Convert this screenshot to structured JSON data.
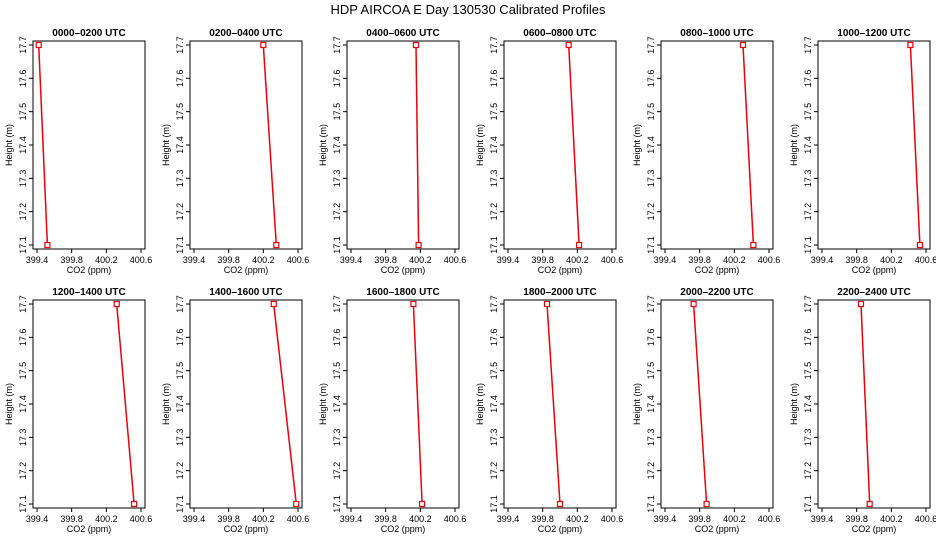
{
  "figure": {
    "title": "HDP AIRCOA E  Day 130530  Calibrated Profiles",
    "colors": {
      "series": "#e8000b",
      "axis": "#000000",
      "background": "#ffffff"
    }
  },
  "chart_data": [
    {
      "type": "line",
      "title": "0000–0200 UTC",
      "xlabel": "CO2 (ppm)",
      "ylabel": "Height (m)",
      "x": [
        399.42,
        399.52
      ],
      "y": [
        17.7,
        17.1
      ],
      "xlim": [
        399.4,
        400.6
      ],
      "ylim": [
        17.1,
        17.7
      ],
      "xticks": [
        "399.4",
        "399.8",
        "400.2",
        "400.6"
      ],
      "yticks": [
        "17.1",
        "17.2",
        "17.3",
        "17.4",
        "17.5",
        "17.6",
        "17.7"
      ],
      "grid": false
    },
    {
      "type": "line",
      "title": "0200–0400 UTC",
      "xlabel": "CO2 (ppm)",
      "ylabel": "Height (m)",
      "x": [
        400.2,
        400.35
      ],
      "y": [
        17.7,
        17.1
      ],
      "xlim": [
        399.4,
        400.6
      ],
      "ylim": [
        17.1,
        17.7
      ],
      "xticks": [
        "399.4",
        "399.8",
        "400.2",
        "400.6"
      ],
      "yticks": [
        "17.1",
        "17.2",
        "17.3",
        "17.4",
        "17.5",
        "17.6",
        "17.7"
      ],
      "grid": false
    },
    {
      "type": "line",
      "title": "0400–0600 UTC",
      "xlabel": "CO2 (ppm)",
      "ylabel": "Height (m)",
      "x": [
        400.15,
        400.18
      ],
      "y": [
        17.7,
        17.1
      ],
      "xlim": [
        399.4,
        400.6
      ],
      "ylim": [
        17.1,
        17.7
      ],
      "xticks": [
        "399.4",
        "399.8",
        "400.2",
        "400.6"
      ],
      "yticks": [
        "17.1",
        "17.2",
        "17.3",
        "17.4",
        "17.5",
        "17.6",
        "17.7"
      ],
      "grid": false
    },
    {
      "type": "line",
      "title": "0600–0800 UTC",
      "xlabel": "CO2 (ppm)",
      "ylabel": "Height (m)",
      "x": [
        400.1,
        400.22
      ],
      "y": [
        17.7,
        17.1
      ],
      "xlim": [
        399.4,
        400.6
      ],
      "ylim": [
        17.1,
        17.7
      ],
      "xticks": [
        "399.4",
        "399.8",
        "400.2",
        "400.6"
      ],
      "yticks": [
        "17.1",
        "17.2",
        "17.3",
        "17.4",
        "17.5",
        "17.6",
        "17.7"
      ],
      "grid": false
    },
    {
      "type": "line",
      "title": "0800–1000 UTC",
      "xlabel": "CO2 (ppm)",
      "ylabel": "Height (m)",
      "x": [
        400.3,
        400.42
      ],
      "y": [
        17.7,
        17.1
      ],
      "xlim": [
        399.4,
        400.6
      ],
      "ylim": [
        17.1,
        17.7
      ],
      "xticks": [
        "399.4",
        "399.8",
        "400.2",
        "400.6"
      ],
      "yticks": [
        "17.1",
        "17.2",
        "17.3",
        "17.4",
        "17.5",
        "17.6",
        "17.7"
      ],
      "grid": false
    },
    {
      "type": "line",
      "title": "1000–1200 UTC",
      "xlabel": "CO2 (ppm)",
      "ylabel": "Height (m)",
      "x": [
        400.42,
        400.53
      ],
      "y": [
        17.7,
        17.1
      ],
      "xlim": [
        399.4,
        400.6
      ],
      "ylim": [
        17.1,
        17.7
      ],
      "xticks": [
        "399.4",
        "399.8",
        "400.2",
        "400.6"
      ],
      "yticks": [
        "17.1",
        "17.2",
        "17.3",
        "17.4",
        "17.5",
        "17.6",
        "17.7"
      ],
      "grid": false
    },
    {
      "type": "line",
      "title": "1200–1400 UTC",
      "xlabel": "CO2 (ppm)",
      "ylabel": "Height (m)",
      "x": [
        400.32,
        400.52
      ],
      "y": [
        17.7,
        17.1
      ],
      "xlim": [
        399.4,
        400.6
      ],
      "ylim": [
        17.1,
        17.7
      ],
      "xticks": [
        "399.4",
        "399.8",
        "400.2",
        "400.6"
      ],
      "yticks": [
        "17.1",
        "17.2",
        "17.3",
        "17.4",
        "17.5",
        "17.6",
        "17.7"
      ],
      "grid": false
    },
    {
      "type": "line",
      "title": "1400–1600 UTC",
      "xlabel": "CO2 (ppm)",
      "ylabel": "Height (m)",
      "x": [
        400.32,
        400.58
      ],
      "y": [
        17.7,
        17.1
      ],
      "xlim": [
        399.4,
        400.6
      ],
      "ylim": [
        17.1,
        17.7
      ],
      "xticks": [
        "399.4",
        "399.8",
        "400.2",
        "400.6"
      ],
      "yticks": [
        "17.1",
        "17.2",
        "17.3",
        "17.4",
        "17.5",
        "17.6",
        "17.7"
      ],
      "grid": false
    },
    {
      "type": "line",
      "title": "1600–1800 UTC",
      "xlabel": "CO2 (ppm)",
      "ylabel": "Height (m)",
      "x": [
        400.12,
        400.22
      ],
      "y": [
        17.7,
        17.1
      ],
      "xlim": [
        399.4,
        400.6
      ],
      "ylim": [
        17.1,
        17.7
      ],
      "xticks": [
        "399.4",
        "399.8",
        "400.2",
        "400.6"
      ],
      "yticks": [
        "17.1",
        "17.2",
        "17.3",
        "17.4",
        "17.5",
        "17.6",
        "17.7"
      ],
      "grid": false
    },
    {
      "type": "line",
      "title": "1800–2000 UTC",
      "xlabel": "CO2 (ppm)",
      "ylabel": "Height (m)",
      "x": [
        399.85,
        400.0
      ],
      "y": [
        17.7,
        17.1
      ],
      "xlim": [
        399.4,
        400.6
      ],
      "ylim": [
        17.1,
        17.7
      ],
      "xticks": [
        "399.4",
        "399.8",
        "400.2",
        "400.6"
      ],
      "yticks": [
        "17.1",
        "17.2",
        "17.3",
        "17.4",
        "17.5",
        "17.6",
        "17.7"
      ],
      "grid": false
    },
    {
      "type": "line",
      "title": "2000–2200 UTC",
      "xlabel": "CO2 (ppm)",
      "ylabel": "Height (m)",
      "x": [
        399.73,
        399.88
      ],
      "y": [
        17.7,
        17.1
      ],
      "xlim": [
        399.4,
        400.6
      ],
      "ylim": [
        17.1,
        17.7
      ],
      "xticks": [
        "399.4",
        "399.8",
        "400.2",
        "400.6"
      ],
      "yticks": [
        "17.1",
        "17.2",
        "17.3",
        "17.4",
        "17.5",
        "17.6",
        "17.7"
      ],
      "grid": false
    },
    {
      "type": "line",
      "title": "2200–2400 UTC",
      "xlabel": "CO2 (ppm)",
      "ylabel": "Height (m)",
      "x": [
        399.85,
        399.95
      ],
      "y": [
        17.7,
        17.1
      ],
      "xlim": [
        399.4,
        400.6
      ],
      "ylim": [
        17.1,
        17.7
      ],
      "xticks": [
        "399.4",
        "399.8",
        "400.2",
        "400.6"
      ],
      "yticks": [
        "17.1",
        "17.2",
        "17.3",
        "17.4",
        "17.5",
        "17.6",
        "17.7"
      ],
      "grid": false
    }
  ]
}
